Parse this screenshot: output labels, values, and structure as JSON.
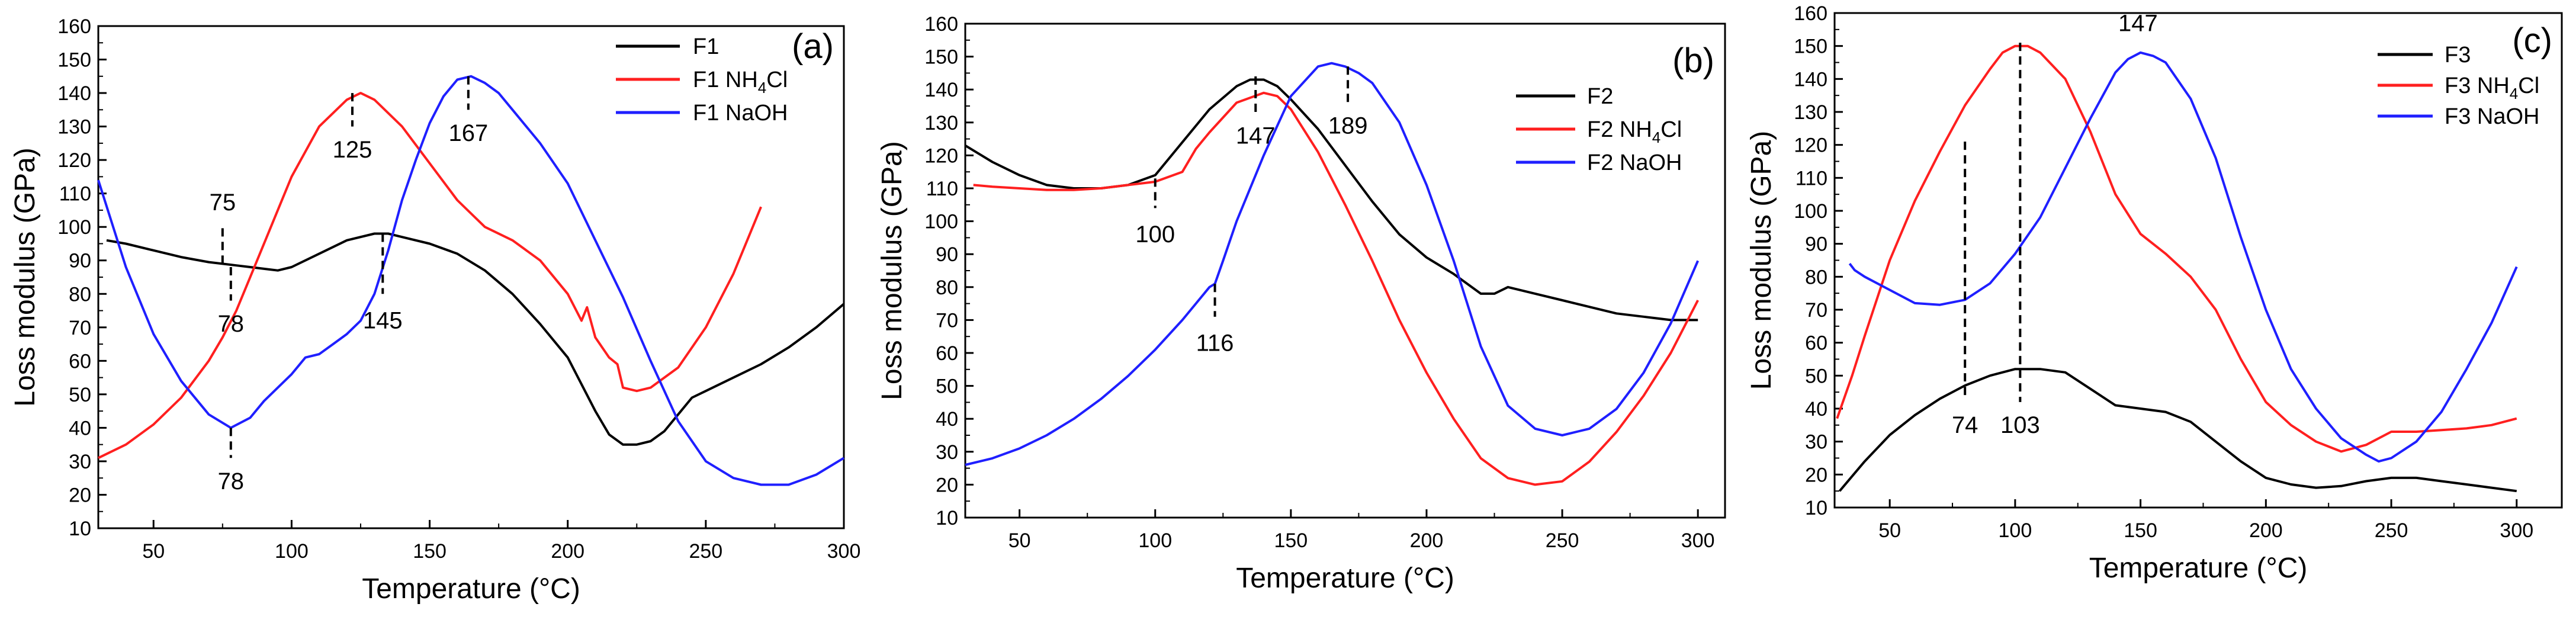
{
  "figure": {
    "colors": {
      "black": "#000000",
      "red": "#ff1f1f",
      "blue": "#1f1fff"
    }
  },
  "chart_data": [
    {
      "type": "line",
      "panel_label": "(a)",
      "xlabel": "Temperature (°C)",
      "ylabel": "Loss modulus (GPa)",
      "xlim": [
        30,
        300
      ],
      "ylim": [
        10,
        160
      ],
      "xticks": [
        50,
        100,
        150,
        200,
        250,
        300
      ],
      "yticks": [
        10,
        20,
        30,
        40,
        50,
        60,
        70,
        80,
        90,
        100,
        110,
        120,
        130,
        140,
        150,
        160
      ],
      "legend_position": "top-right",
      "series": [
        {
          "name": "F1",
          "legend_main": "F1",
          "legend_sub": "",
          "legend_tail": "",
          "color_key": "black",
          "x": [
            33,
            40,
            50,
            60,
            70,
            80,
            85,
            90,
            95,
            100,
            110,
            120,
            130,
            135,
            140,
            150,
            160,
            170,
            180,
            190,
            200,
            210,
            215,
            220,
            225,
            230,
            235,
            240,
            245,
            250,
            260,
            270,
            280,
            290,
            300
          ],
          "y": [
            96,
            95,
            93,
            91,
            89.5,
            88.5,
            88,
            87.5,
            87,
            88,
            92,
            96,
            98,
            98,
            97,
            95,
            92,
            87,
            80,
            71,
            61,
            45,
            38,
            35,
            35,
            36,
            39,
            44,
            49,
            51,
            55,
            59,
            64,
            70,
            77
          ]
        },
        {
          "name": "F1 NH4Cl",
          "legend_main": "F1 NH",
          "legend_sub": "4",
          "legend_tail": "Cl",
          "color_key": "red",
          "x": [
            30,
            40,
            50,
            60,
            70,
            75,
            80,
            85,
            90,
            95,
            100,
            110,
            120,
            125,
            130,
            140,
            150,
            160,
            170,
            180,
            190,
            200,
            205,
            207,
            210,
            215,
            218,
            220,
            225,
            230,
            240,
            250,
            260,
            270
          ],
          "y": [
            31,
            35,
            41,
            49,
            60,
            67,
            75,
            85,
            95,
            105,
            115,
            130,
            138,
            140,
            138,
            130,
            119,
            108,
            100,
            96,
            90,
            80,
            72,
            76,
            67,
            61,
            59,
            52,
            51,
            52,
            58,
            70,
            86,
            106
          ]
        },
        {
          "name": "F1 NaOH",
          "legend_main": "F1 NaOH",
          "legend_sub": "",
          "legend_tail": "",
          "color_key": "blue",
          "x": [
            30,
            40,
            50,
            60,
            70,
            78,
            85,
            90,
            100,
            105,
            110,
            115,
            120,
            125,
            130,
            135,
            140,
            145,
            150,
            155,
            160,
            165,
            170,
            175,
            180,
            190,
            200,
            210,
            220,
            230,
            240,
            250,
            260,
            270,
            280,
            290,
            300
          ],
          "y": [
            114,
            88,
            68,
            54,
            44,
            40,
            43,
            48,
            56,
            61,
            62,
            65,
            68,
            72,
            80,
            93,
            108,
            120,
            131,
            139,
            144,
            145,
            143,
            140,
            135,
            125,
            113,
            96,
            79,
            60,
            42,
            30,
            25,
            23,
            23,
            26,
            31
          ]
        }
      ],
      "annotations": [
        {
          "text": "75",
          "x": 75,
          "y_from": 89,
          "y_to": 100,
          "label_y": 105,
          "label_pos": "above"
        },
        {
          "text": "78",
          "x": 78,
          "y_from": 88,
          "y_to": 78,
          "label_y": 74,
          "label_pos": "below"
        },
        {
          "text": "125",
          "x": 122,
          "y_from": 140,
          "y_to": 130,
          "label_y": 126,
          "label_pos": "below"
        },
        {
          "text": "167",
          "x": 164,
          "y_from": 145,
          "y_to": 135,
          "label_y": 131,
          "label_pos": "below"
        },
        {
          "text": "145",
          "x": 133,
          "y_from": 98,
          "y_to": 80,
          "label_y": 75,
          "label_pos": "below"
        },
        {
          "text": "78",
          "x": 78,
          "y_from": 40,
          "y_to": 31,
          "label_y": 27,
          "label_pos": "below"
        }
      ]
    },
    {
      "type": "line",
      "panel_label": "(b)",
      "xlabel": "Temperature (°C)",
      "ylabel": "Loss modulus (GPa)",
      "xlim": [
        30,
        310
      ],
      "ylim": [
        10,
        160
      ],
      "xticks": [
        50,
        100,
        150,
        200,
        250,
        300
      ],
      "yticks": [
        10,
        20,
        30,
        40,
        50,
        60,
        70,
        80,
        90,
        100,
        110,
        120,
        130,
        140,
        150,
        160
      ],
      "legend_position": "top-right",
      "series": [
        {
          "name": "F2",
          "legend_main": "F2",
          "legend_sub": "",
          "legend_tail": "",
          "color_key": "black",
          "x": [
            30,
            40,
            50,
            60,
            70,
            80,
            90,
            100,
            110,
            120,
            130,
            135,
            140,
            145,
            150,
            160,
            170,
            180,
            190,
            200,
            210,
            215,
            220,
            225,
            230,
            240,
            250,
            260,
            270,
            280,
            290,
            300
          ],
          "y": [
            123,
            118,
            114,
            111,
            110,
            110,
            111,
            114,
            124,
            134,
            141,
            143,
            143,
            141,
            137,
            128,
            117,
            106,
            96,
            89,
            84,
            81,
            78,
            78,
            80,
            78,
            76,
            74,
            72,
            71,
            70,
            70
          ]
        },
        {
          "name": "F2 NH4Cl",
          "legend_main": "F2 NH",
          "legend_sub": "4",
          "legend_tail": "Cl",
          "color_key": "red",
          "x": [
            33,
            40,
            50,
            60,
            70,
            80,
            90,
            100,
            110,
            115,
            120,
            130,
            140,
            145,
            150,
            160,
            170,
            180,
            190,
            200,
            210,
            220,
            230,
            240,
            250,
            260,
            270,
            280,
            290,
            300
          ],
          "y": [
            111,
            110.5,
            110,
            109.5,
            109.5,
            110,
            111,
            112,
            115,
            122,
            127,
            136,
            139,
            138,
            134,
            121,
            105,
            88,
            70,
            54,
            40,
            28,
            22,
            20,
            21,
            27,
            36,
            47,
            60,
            76
          ]
        },
        {
          "name": "F2 NaOH",
          "legend_main": "F2 NaOH",
          "legend_sub": "",
          "legend_tail": "",
          "color_key": "blue",
          "x": [
            30,
            40,
            50,
            60,
            70,
            80,
            90,
            100,
            110,
            115,
            120,
            122,
            125,
            130,
            140,
            150,
            160,
            165,
            170,
            175,
            180,
            190,
            200,
            210,
            220,
            230,
            240,
            250,
            260,
            270,
            280,
            290,
            300
          ],
          "y": [
            26,
            28,
            31,
            35,
            40,
            46,
            53,
            61,
            70,
            75,
            80,
            81,
            88,
            100,
            120,
            138,
            147,
            148,
            147,
            145,
            142,
            130,
            111,
            88,
            62,
            44,
            37,
            35,
            37,
            43,
            54,
            69,
            88
          ]
        }
      ],
      "annotations": [
        {
          "text": "147",
          "x": 137,
          "y_from": 144,
          "y_to": 133,
          "label_y": 129,
          "label_pos": "below"
        },
        {
          "text": "189",
          "x": 171,
          "y_from": 147,
          "y_to": 136,
          "label_y": 132,
          "label_pos": "below"
        },
        {
          "text": "100",
          "x": 100,
          "y_from": 113,
          "y_to": 104,
          "label_y": 99,
          "label_pos": "below"
        },
        {
          "text": "116",
          "x": 122,
          "y_from": 81,
          "y_to": 71,
          "label_y": 66,
          "label_pos": "below"
        }
      ]
    },
    {
      "type": "line",
      "panel_label": "(c)",
      "xlabel": "Temperature (°C)",
      "ylabel": "Loss modulus (GPa)",
      "xlim": [
        28,
        318
      ],
      "ylim": [
        10,
        160
      ],
      "xticks": [
        50,
        100,
        150,
        200,
        250,
        300
      ],
      "yticks": [
        10,
        20,
        30,
        40,
        50,
        60,
        70,
        80,
        90,
        100,
        110,
        120,
        130,
        140,
        150,
        160
      ],
      "legend_position": "top-right",
      "series": [
        {
          "name": "F3",
          "legend_main": "F3",
          "legend_sub": "",
          "legend_tail": "",
          "color_key": "black",
          "x": [
            30,
            40,
            50,
            60,
            70,
            80,
            90,
            100,
            110,
            120,
            130,
            140,
            150,
            160,
            170,
            180,
            190,
            200,
            210,
            220,
            230,
            240,
            250,
            260,
            270,
            280,
            290,
            300
          ],
          "y": [
            15,
            24,
            32,
            38,
            43,
            47,
            50,
            52,
            52,
            51,
            46,
            41,
            40,
            39,
            36,
            30,
            24,
            19,
            17,
            16,
            16.5,
            18,
            19,
            19,
            18,
            17,
            16,
            15
          ]
        },
        {
          "name": "F3 NH4Cl",
          "legend_main": "F3 NH",
          "legend_sub": "4",
          "legend_tail": "Cl",
          "color_key": "red",
          "x": [
            29,
            35,
            40,
            50,
            60,
            70,
            80,
            90,
            95,
            100,
            105,
            110,
            120,
            130,
            140,
            150,
            160,
            170,
            180,
            190,
            200,
            210,
            220,
            230,
            240,
            250,
            260,
            270,
            280,
            290,
            300
          ],
          "y": [
            37,
            50,
            62,
            85,
            103,
            118,
            132,
            143,
            148,
            150,
            150,
            148,
            140,
            124,
            105,
            93,
            87,
            80,
            70,
            55,
            42,
            35,
            30,
            27,
            29,
            33,
            33,
            33.5,
            34,
            35,
            37
          ]
        },
        {
          "name": "F3 NaOH",
          "legend_main": "F3 NaOH",
          "legend_sub": "",
          "legend_tail": "",
          "color_key": "blue",
          "x": [
            34,
            36,
            40,
            50,
            60,
            70,
            80,
            90,
            100,
            110,
            120,
            130,
            140,
            145,
            150,
            155,
            160,
            170,
            180,
            190,
            200,
            210,
            220,
            230,
            240,
            245,
            250,
            260,
            270,
            280,
            290,
            300
          ],
          "y": [
            84,
            82,
            80,
            76,
            72,
            71.5,
            73,
            78,
            87,
            98,
            113,
            128,
            142,
            146,
            148,
            147,
            145,
            134,
            116,
            92,
            70,
            52,
            40,
            31,
            26,
            24,
            25,
            30,
            39,
            52,
            66,
            83
          ]
        }
      ],
      "annotations": [
        {
          "text": "147",
          "x": 149,
          "y_from": 157,
          "y_to": 157,
          "label_y": 157,
          "label_pos": "text-only"
        },
        {
          "text": "74",
          "x": 80,
          "y_from": 121,
          "y_to": 43,
          "label_y": 38,
          "label_pos": "below"
        },
        {
          "text": "103",
          "x": 102,
          "y_from": 151,
          "y_to": 42,
          "label_y": 38,
          "label_pos": "below"
        }
      ]
    }
  ]
}
